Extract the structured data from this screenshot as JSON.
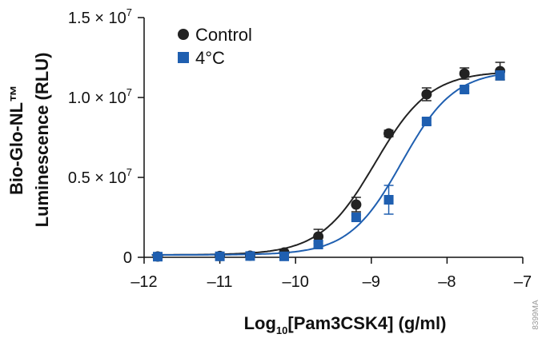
{
  "chart_data": {
    "type": "scatter",
    "xlabel_main": "Log",
    "xlabel_sub": "10",
    "xlabel_rest": "[Pam3CSK4] (g/ml)",
    "ylabel_line1": "Bio-Glo-NL™",
    "ylabel_line2": "Luminescence (RLU)",
    "xlim": [
      -12,
      -7
    ],
    "ylim": [
      0,
      15000000
    ],
    "x_ticks": [
      {
        "value": -12,
        "label": "–12"
      },
      {
        "value": -11,
        "label": "–11"
      },
      {
        "value": -10,
        "label": "–10"
      },
      {
        "value": -9,
        "label": "–9"
      },
      {
        "value": -8,
        "label": "–8"
      },
      {
        "value": -7,
        "label": "–7"
      }
    ],
    "y_ticks": [
      {
        "value": 0,
        "label": "0",
        "exp": ""
      },
      {
        "value": 5000000,
        "label": "0.5 × 10",
        "exp": "7"
      },
      {
        "value": 10000000,
        "label": "1.0 × 10",
        "exp": "7"
      },
      {
        "value": 15000000,
        "label": "1.5 × 10",
        "exp": "7"
      }
    ],
    "legend_position": "top-left",
    "series": [
      {
        "name": "Control",
        "marker": "circle",
        "color": "#222222",
        "fit": {
          "bottom": 150000,
          "top": 11650000,
          "logEC50": -8.95,
          "hill": 1.2
        },
        "points": [
          {
            "x": -11.82,
            "y": 50000,
            "err": 80000
          },
          {
            "x": -11.0,
            "y": 80000,
            "err": 80000
          },
          {
            "x": -10.6,
            "y": 100000,
            "err": 100000
          },
          {
            "x": -10.15,
            "y": 300000,
            "err": 120000
          },
          {
            "x": -9.7,
            "y": 1300000,
            "err": 450000
          },
          {
            "x": -9.2,
            "y": 3300000,
            "err": 450000
          },
          {
            "x": -8.77,
            "y": 7750000,
            "err": 200000
          },
          {
            "x": -8.27,
            "y": 10200000,
            "err": 400000
          },
          {
            "x": -7.77,
            "y": 11500000,
            "err": 350000
          },
          {
            "x": -7.3,
            "y": 11650000,
            "err": 550000
          }
        ]
      },
      {
        "name": "4°C",
        "marker": "square",
        "color": "#1f5fb0",
        "fit": {
          "bottom": 150000,
          "top": 11700000,
          "logEC50": -8.6,
          "hill": 1.25
        },
        "points": [
          {
            "x": -11.82,
            "y": 40000,
            "err": 60000
          },
          {
            "x": -11.0,
            "y": 60000,
            "err": 60000
          },
          {
            "x": -10.6,
            "y": 80000,
            "err": 80000
          },
          {
            "x": -10.15,
            "y": 60000,
            "err": 100000
          },
          {
            "x": -9.7,
            "y": 800000,
            "err": 200000
          },
          {
            "x": -9.2,
            "y": 2500000,
            "err": 150000
          },
          {
            "x": -8.77,
            "y": 3600000,
            "err": 900000
          },
          {
            "x": -8.27,
            "y": 8500000,
            "err": 200000
          },
          {
            "x": -7.77,
            "y": 10500000,
            "err": 200000
          },
          {
            "x": -7.3,
            "y": 11400000,
            "err": 300000
          }
        ]
      }
    ]
  },
  "code_label": "8399MA"
}
